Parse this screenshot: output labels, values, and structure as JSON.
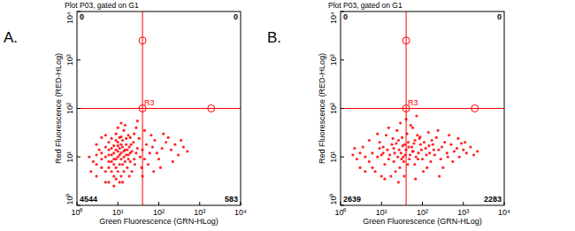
{
  "chart_data": [
    {
      "type": "scatter",
      "panel": "A.",
      "title": "Plot P03, gated on G1",
      "x_label": "Green Fluorescence (GRN-HLog)",
      "y_label": "Red Fluorescence (RED-HLog)",
      "log": true,
      "grid": false,
      "color": "#ff0000",
      "xlim": [
        1,
        10000
      ],
      "ylim": [
        1,
        10000
      ],
      "xticks": [
        {
          "value": 1,
          "label": "10⁰"
        },
        {
          "value": 10,
          "label": "10¹"
        },
        {
          "value": 100,
          "label": "10²"
        },
        {
          "value": 1000,
          "label": "10³"
        },
        {
          "value": 10000,
          "label": "10⁴"
        }
      ],
      "yticks": [
        {
          "value": 1,
          "label": "10⁰"
        },
        {
          "value": 10,
          "label": "10¹"
        },
        {
          "value": 100,
          "label": "10²"
        },
        {
          "value": 1000,
          "label": "10³"
        },
        {
          "value": 10000,
          "label": "10⁴"
        }
      ],
      "gate": {
        "label": "R3",
        "x": 40,
        "y": 100
      },
      "quadrant_counts": [
        0,
        0,
        4544,
        583
      ],
      "x": [
        10,
        8,
        12,
        6,
        15,
        9,
        11,
        7,
        13,
        5,
        18,
        10,
        4,
        14,
        8,
        20,
        6,
        12,
        9,
        16,
        3,
        7,
        11,
        22,
        5,
        13,
        25,
        8,
        17,
        10,
        4,
        6,
        14,
        19,
        2.5,
        9,
        28,
        12,
        3.5,
        24,
        7,
        15,
        11,
        30,
        5,
        20,
        8,
        16,
        2,
        35,
        6,
        13,
        9,
        26,
        40,
        18,
        4,
        10,
        45,
        7,
        22,
        14,
        50,
        3,
        12,
        60,
        8,
        33,
        19,
        5,
        70,
        11,
        15,
        55,
        90,
        6,
        25,
        80,
        17,
        3,
        120,
        10,
        38,
        9,
        100,
        21,
        150,
        4,
        65,
        13,
        200,
        28,
        7,
        110,
        16,
        250,
        2.2,
        45,
        300,
        12,
        170,
        9,
        75,
        14,
        400,
        6,
        130,
        10,
        3,
        500,
        18,
        8,
        220,
        12,
        40,
        5,
        30,
        11,
        350,
        20
      ],
      "values": [
        10,
        12,
        9,
        8,
        14,
        6,
        15,
        11,
        7,
        10,
        11,
        20,
        9,
        5,
        17,
        8,
        14,
        12,
        9,
        18,
        7,
        5,
        25,
        13,
        16,
        22,
        9,
        4,
        6,
        13,
        12,
        6,
        10,
        16,
        8,
        30,
        12,
        4,
        14,
        20,
        24,
        8,
        7,
        15,
        5,
        25,
        9,
        11,
        10,
        10,
        20,
        16,
        3.5,
        7,
        14,
        28,
        6,
        40,
        9,
        15,
        5,
        35,
        18,
        18,
        18,
        12,
        7,
        24,
        4,
        28,
        16,
        11,
        45,
        7,
        12,
        3,
        30,
        22,
        14,
        4,
        15,
        5,
        6,
        22,
        9,
        18,
        20,
        25,
        28,
        3,
        14,
        40,
        8,
        6,
        24,
        18,
        5,
        35,
        11,
        50,
        25,
        14,
        5,
        13,
        16,
        11,
        30,
        17,
        11,
        13,
        9,
        2.5,
        8,
        26,
        4,
        3,
        55,
        3,
        22,
        12
      ]
    },
    {
      "type": "scatter",
      "panel": "B.",
      "title": "Plot P03, gated on G1",
      "x_label": "Green Fluorescence (GRN-HLog)",
      "y_label": "Red Fluorescence (RED-HLog)",
      "log": true,
      "grid": false,
      "color": "#ff0000",
      "xlim": [
        1,
        10000
      ],
      "ylim": [
        1,
        10000
      ],
      "xticks": [
        {
          "value": 1,
          "label": "10⁰"
        },
        {
          "value": 10,
          "label": "10¹"
        },
        {
          "value": 100,
          "label": "10²"
        },
        {
          "value": 1000,
          "label": "10³"
        },
        {
          "value": 10000,
          "label": "10⁴"
        }
      ],
      "yticks": [
        {
          "value": 1,
          "label": "10⁰"
        },
        {
          "value": 10,
          "label": "10¹"
        },
        {
          "value": 100,
          "label": "10²"
        },
        {
          "value": 1000,
          "label": "10³"
        },
        {
          "value": 10000,
          "label": "10⁴"
        }
      ],
      "gate": {
        "label": "R3",
        "x": 40,
        "y": 100
      },
      "quadrant_counts": [
        0,
        0,
        2639,
        2283
      ],
      "x": [
        30,
        25,
        40,
        15,
        50,
        20,
        35,
        60,
        10,
        45,
        28,
        70,
        18,
        55,
        12,
        80,
        32,
        22,
        90,
        8,
        100,
        38,
        14,
        120,
        26,
        65,
        6,
        150,
        42,
        17,
        110,
        5,
        75,
        33,
        200,
        11,
        130,
        24,
        180,
        4,
        48,
        250,
        9,
        58,
        3,
        300,
        21,
        85,
        7,
        160,
        36,
        350,
        13,
        95,
        2.5,
        220,
        52,
        16,
        400,
        44,
        3.5,
        280,
        27,
        140,
        6,
        500,
        62,
        19,
        600,
        8,
        105,
        34,
        700,
        2,
        170,
        46,
        800,
        12,
        240,
        29,
        900,
        5,
        125,
        1000,
        68,
        10,
        1200,
        23,
        450,
        78,
        1500,
        4,
        320,
        15,
        1800,
        88,
        40,
        550,
        31,
        2200,
        11,
        190,
        57,
        3,
        750,
        20,
        260,
        37,
        1100,
        9,
        145,
        66,
        2.2,
        420,
        26,
        72
      ],
      "values": [
        12,
        10,
        14,
        9,
        11,
        15,
        8,
        13,
        11,
        20,
        6,
        10,
        18,
        16,
        7,
        12,
        25,
        5,
        18,
        10,
        9,
        11,
        14,
        15,
        22,
        7,
        12,
        12,
        30,
        4,
        20,
        8,
        28,
        17,
        11,
        16,
        6,
        35,
        18,
        10,
        9,
        14,
        20,
        40,
        12,
        16,
        12,
        24,
        5,
        8,
        4,
        20,
        28,
        14,
        9,
        25,
        45,
        11,
        12,
        7,
        16,
        9,
        14,
        32,
        6,
        18,
        19,
        24,
        13,
        30,
        5,
        10,
        15,
        11,
        22,
        16,
        10,
        3.5,
        35,
        50,
        19,
        22,
        11,
        14,
        3.5,
        4,
        12,
        19,
        28,
        9,
        16,
        5,
        6,
        40,
        11,
        26,
        60,
        8,
        9,
        13,
        12,
        14,
        13,
        6,
        24,
        8,
        4,
        18,
        20,
        15,
        17,
        22,
        15,
        10,
        3,
        70
      ]
    }
  ]
}
